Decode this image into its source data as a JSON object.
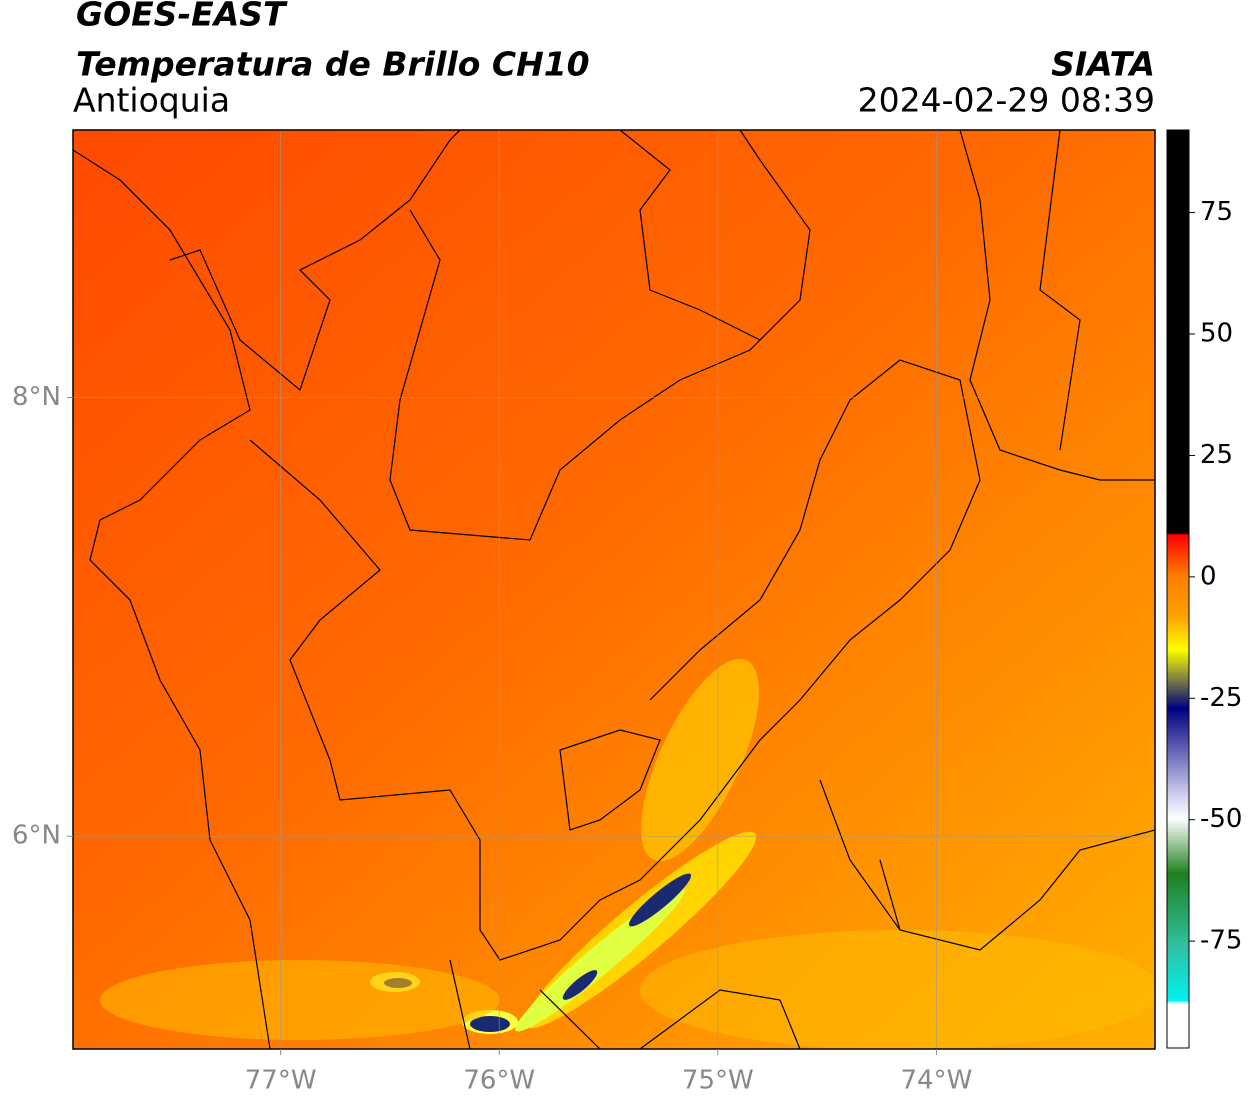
{
  "header": {
    "title": "GOES-EAST",
    "subtitle": "Temperatura de Brillo CH10",
    "region": "Antioquia",
    "source": "SIATA",
    "datetime": "2024-02-29 08:39"
  },
  "map": {
    "lon_range": [
      -77.95,
      -73.0
    ],
    "lat_range": [
      5.03,
      9.22
    ],
    "lon_ticks": [
      {
        "value": -77,
        "label": "77°W"
      },
      {
        "value": -76,
        "label": "76°W"
      },
      {
        "value": -75,
        "label": "75°W"
      },
      {
        "value": -74,
        "label": "74°W"
      }
    ],
    "lat_ticks": [
      {
        "value": 8,
        "label": "8°N"
      },
      {
        "value": 6,
        "label": "6°N"
      }
    ]
  },
  "colorbar": {
    "range": [
      -97,
      92
    ],
    "ticks": [
      75,
      50,
      25,
      0,
      -25,
      -50,
      -75
    ]
  }
}
